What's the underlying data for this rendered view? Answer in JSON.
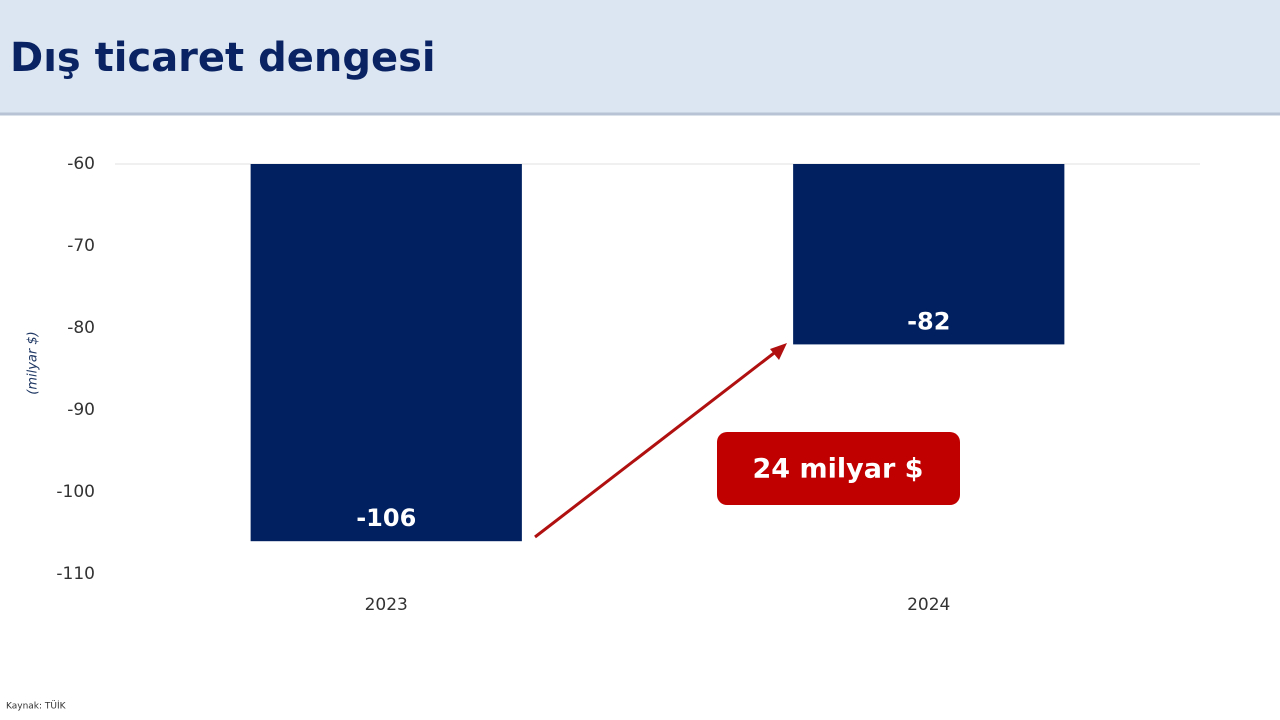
{
  "chart_data": {
    "type": "bar",
    "title": "Dış ticaret dengesi",
    "y_label": "(milyar $)",
    "categories": [
      "2023",
      "2024"
    ],
    "values": [
      -106,
      -82
    ],
    "color": "#002060",
    "ylim": [
      -110,
      -60
    ],
    "yticks": [
      -60,
      -70,
      -80,
      -90,
      -100,
      -110
    ],
    "grid": false,
    "annotation": "24 milyar $",
    "source": "Kaynak: TÜİK"
  }
}
